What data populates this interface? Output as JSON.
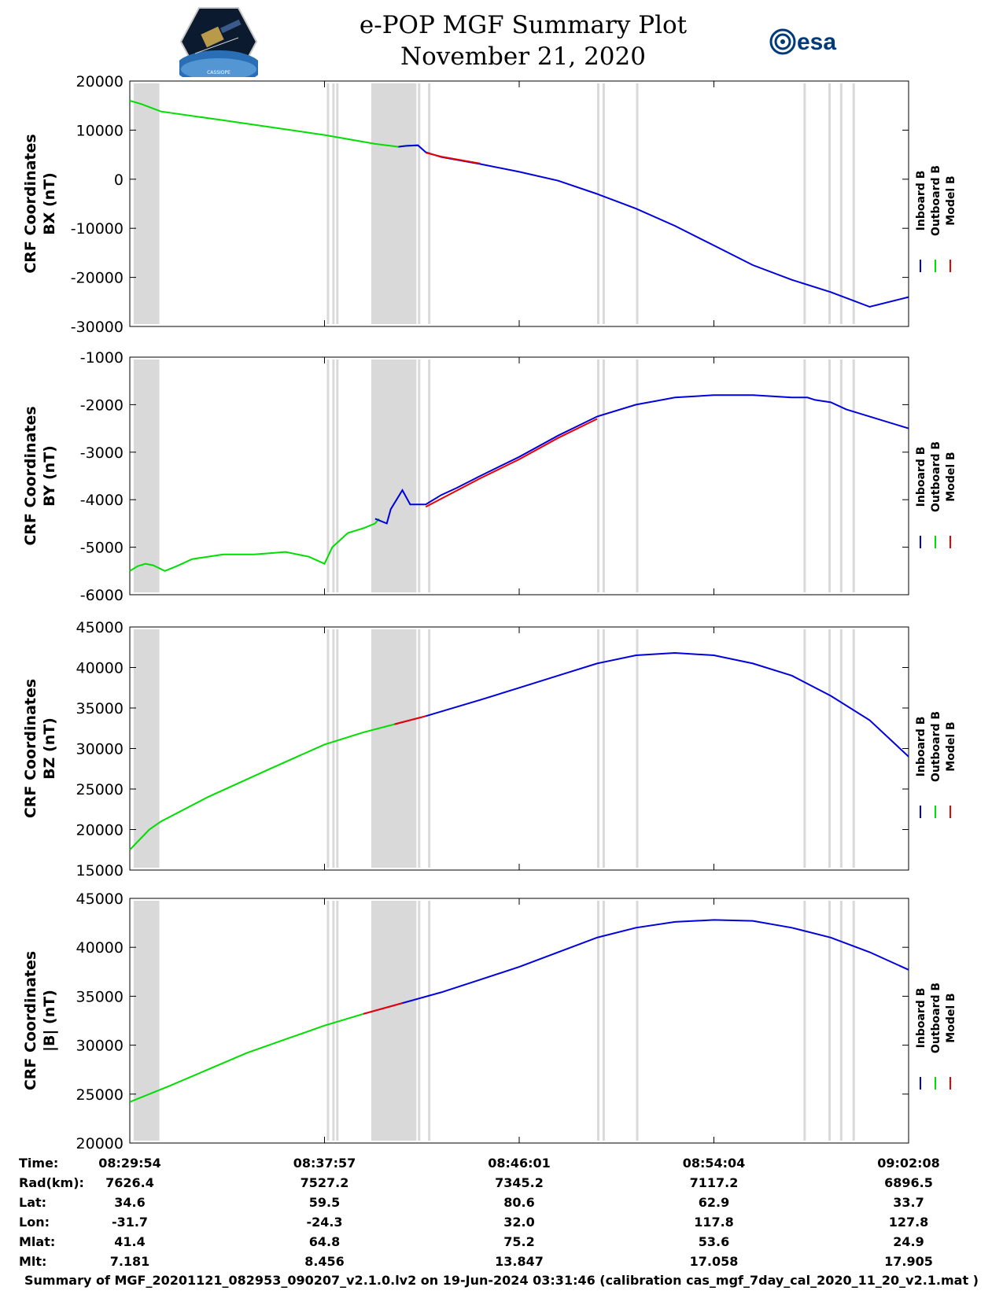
{
  "header": {
    "title": "e-POP MGF Summary Plot",
    "date": "November 21, 2020",
    "logo_left_text": "CASSIOPE",
    "logo_right_text": "esa"
  },
  "chart_data": [
    {
      "type": "line",
      "ylabel_line1": "CRF Coordinates",
      "ylabel_line2": "BX (nT)",
      "ylim": [
        -30000,
        20000
      ],
      "yticks": [
        20000,
        10000,
        0,
        -10000,
        -20000,
        -30000
      ],
      "series": [
        {
          "name": "Outboard B",
          "color": "#00dd00",
          "x": [
            0,
            0.015,
            0.04,
            0.12,
            0.25,
            0.315,
            0.345,
            0.355,
            0.37
          ],
          "y": [
            16000,
            15300,
            13800,
            12000,
            9000,
            7200,
            6600,
            6800,
            6900
          ]
        },
        {
          "name": "Inboard B",
          "color": "#0000dd",
          "x": [
            0.345,
            0.355,
            0.37,
            0.38,
            0.4,
            0.45,
            0.5,
            0.55,
            0.6,
            0.65,
            0.7,
            0.75,
            0.8,
            0.85,
            0.9,
            0.95,
            1.0
          ],
          "y": [
            6600,
            6800,
            6900,
            5500,
            4500,
            3100,
            1500,
            -300,
            -3000,
            -6000,
            -9500,
            -13500,
            -17500,
            -20500,
            -23000,
            -26000,
            -24000
          ]
        },
        {
          "name": "Model B",
          "color": "#ee0000",
          "x": [
            0.38,
            0.4,
            0.45
          ],
          "y": [
            5400,
            4600,
            3200
          ]
        }
      ]
    },
    {
      "type": "line",
      "ylabel_line1": "CRF Coordinates",
      "ylabel_line2": "BY (nT)",
      "ylim": [
        -6000,
        -1000
      ],
      "yticks": [
        -1000,
        -2000,
        -3000,
        -4000,
        -5000,
        -6000
      ],
      "series": [
        {
          "name": "Outboard B",
          "color": "#00dd00",
          "x": [
            0,
            0.01,
            0.02,
            0.03,
            0.045,
            0.06,
            0.08,
            0.12,
            0.16,
            0.2,
            0.23,
            0.25,
            0.26,
            0.28,
            0.3,
            0.315,
            0.32
          ],
          "y": [
            -5500,
            -5400,
            -5350,
            -5380,
            -5500,
            -5400,
            -5250,
            -5150,
            -5150,
            -5100,
            -5200,
            -5350,
            -5000,
            -4700,
            -4600,
            -4500,
            -4400
          ]
        },
        {
          "name": "Inboard B",
          "color": "#0000dd",
          "x": [
            0.315,
            0.33,
            0.335,
            0.35,
            0.36,
            0.37,
            0.38,
            0.4,
            0.42,
            0.45,
            0.5,
            0.55,
            0.6,
            0.65,
            0.7,
            0.75,
            0.8,
            0.85,
            0.86,
            0.87,
            0.88,
            0.9,
            0.92,
            1.0
          ],
          "y": [
            -4400,
            -4500,
            -4200,
            -3800,
            -4100,
            -4100,
            -4100,
            -3900,
            -3750,
            -3500,
            -3100,
            -2650,
            -2250,
            -2000,
            -1850,
            -1800,
            -1800,
            -1850,
            -1850,
            -1850,
            -1900,
            -1950,
            -2100,
            -2500
          ]
        },
        {
          "name": "Model B",
          "color": "#ee0000",
          "x": [
            0.38,
            0.45,
            0.5,
            0.55,
            0.6
          ],
          "y": [
            -4150,
            -3550,
            -3150,
            -2700,
            -2300
          ]
        }
      ]
    },
    {
      "type": "line",
      "ylabel_line1": "CRF Coordinates",
      "ylabel_line2": "BZ (nT)",
      "ylim": [
        15000,
        45000
      ],
      "yticks": [
        45000,
        40000,
        35000,
        30000,
        25000,
        20000,
        15000
      ],
      "series": [
        {
          "name": "Outboard B",
          "color": "#00dd00",
          "x": [
            0,
            0.01,
            0.025,
            0.04,
            0.1,
            0.18,
            0.25,
            0.3,
            0.34
          ],
          "y": [
            17500,
            18500,
            20000,
            21000,
            24000,
            27500,
            30500,
            32000,
            33000
          ]
        },
        {
          "name": "Inboard B",
          "color": "#0000dd",
          "x": [
            0.34,
            0.38,
            0.45,
            0.5,
            0.55,
            0.6,
            0.65,
            0.7,
            0.75,
            0.8,
            0.85,
            0.9,
            0.95,
            1.0
          ],
          "y": [
            33000,
            34000,
            36000,
            37500,
            39000,
            40500,
            41500,
            41800,
            41500,
            40500,
            39000,
            36500,
            33500,
            29000
          ]
        },
        {
          "name": "Model B",
          "color": "#ee0000",
          "x": [
            0.34,
            0.38
          ],
          "y": [
            33000,
            34000
          ]
        }
      ]
    },
    {
      "type": "line",
      "ylabel_line1": "CRF Coordinates",
      "ylabel_line2": "|B| (nT)",
      "ylim": [
        20000,
        45000
      ],
      "yticks": [
        45000,
        40000,
        35000,
        30000,
        25000,
        20000
      ],
      "series": [
        {
          "name": "Outboard B",
          "color": "#00dd00",
          "x": [
            0,
            0.05,
            0.1,
            0.15,
            0.2,
            0.25,
            0.3
          ],
          "y": [
            24200,
            25800,
            27500,
            29200,
            30600,
            32000,
            33200
          ]
        },
        {
          "name": "Inboard B",
          "color": "#0000dd",
          "x": [
            0.3,
            0.35,
            0.4,
            0.45,
            0.5,
            0.55,
            0.6,
            0.65,
            0.7,
            0.75,
            0.8,
            0.85,
            0.9,
            0.95,
            1.0
          ],
          "y": [
            33200,
            34300,
            35400,
            36700,
            38000,
            39500,
            41000,
            42000,
            42600,
            42800,
            42700,
            42000,
            41000,
            39500,
            37700
          ]
        },
        {
          "name": "Model B",
          "color": "#ee0000",
          "x": [
            0.3,
            0.35
          ],
          "y": [
            33200,
            34300
          ]
        }
      ]
    }
  ],
  "gaps": [
    [
      0.005,
      0.038
    ],
    [
      0.253,
      0.256
    ],
    [
      0.26,
      0.263
    ],
    [
      0.265,
      0.268
    ],
    [
      0.31,
      0.368
    ],
    [
      0.37,
      0.373
    ],
    [
      0.383,
      0.386
    ],
    [
      0.6,
      0.603
    ],
    [
      0.607,
      0.61
    ],
    [
      0.65,
      0.653
    ],
    [
      0.865,
      0.868
    ],
    [
      0.897,
      0.9
    ],
    [
      0.912,
      0.915
    ],
    [
      0.928,
      0.931
    ]
  ],
  "legend": [
    "Inboard B",
    "Outboard B",
    "Model B"
  ],
  "legend_colors": [
    "#0000dd",
    "#00dd00",
    "#ee0000"
  ],
  "ephemeris": {
    "labels": [
      "Time:",
      "Rad(km):",
      "Lat:",
      "Lon:",
      "Mlat:",
      "Mlt:"
    ],
    "columns": [
      [
        "08:29:54",
        "7626.4",
        "34.6",
        "-31.7",
        "41.4",
        "7.181"
      ],
      [
        "08:37:57",
        "7527.2",
        "59.5",
        "-24.3",
        "64.8",
        "8.456"
      ],
      [
        "08:46:01",
        "7345.2",
        "80.6",
        "32.0",
        "75.2",
        "13.847"
      ],
      [
        "08:54:04",
        "7117.2",
        "62.9",
        "117.8",
        "53.6",
        "17.058"
      ],
      [
        "09:02:08",
        "6896.5",
        "33.7",
        "127.8",
        "24.9",
        "17.905"
      ]
    ]
  },
  "footer": "Summary of MGF_20201121_082953_090207_v2.1.0.lv2 on 19-Jun-2024 03:31:46 (calibration cas_mgf_7day_cal_2020_11_20_v2.1.mat )"
}
